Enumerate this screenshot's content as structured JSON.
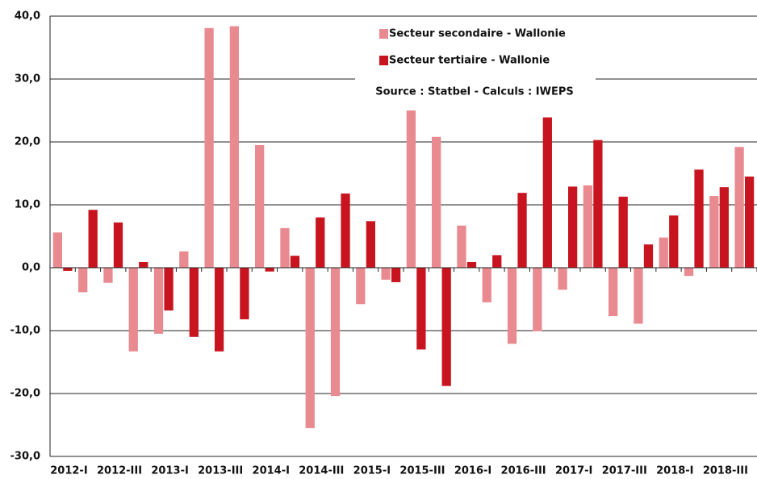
{
  "chart_data": {
    "type": "bar",
    "categories": [
      "2012-I",
      null,
      "2012-III",
      null,
      "2013-I",
      null,
      "2013-III",
      null,
      "2014-I",
      null,
      "2014-III",
      null,
      "2015-I",
      null,
      "2015-III",
      null,
      "2016-I",
      null,
      "2016-III",
      null,
      "2017-I",
      null,
      "2017-III",
      null,
      "2018-I",
      null,
      "2018-III",
      null
    ],
    "series": [
      {
        "name": "Secteur secondaire - Wallonie",
        "color": "#e88a8f",
        "values": [
          5.6,
          -3.9,
          -2.4,
          -13.3,
          -10.5,
          2.6,
          38.1,
          38.4,
          19.5,
          6.3,
          -25.5,
          -20.4,
          -5.8,
          -1.9,
          25.0,
          20.8,
          6.7,
          -5.5,
          -12.1,
          -10.1,
          -3.5,
          13.1,
          -7.7,
          -8.9,
          4.8,
          -1.3,
          11.4,
          19.2
        ]
      },
      {
        "name": "Secteur tertiaire - Wallonie",
        "color": "#c8141e",
        "values": [
          -0.5,
          9.2,
          7.2,
          0.9,
          -6.8,
          -11.0,
          -13.3,
          -8.2,
          -0.6,
          1.9,
          8.0,
          11.8,
          7.4,
          -2.3,
          -13.0,
          -18.8,
          0.9,
          2.0,
          11.9,
          23.9,
          12.9,
          20.3,
          11.3,
          3.7,
          8.3,
          15.6,
          12.8,
          14.5
        ]
      }
    ],
    "annotation": "Source : Statbel - Calculs : IWEPS",
    "ylim": [
      -30,
      40
    ],
    "yticks": [
      {
        "value": -30,
        "label": "-30,0"
      },
      {
        "value": -20,
        "label": "-20,0"
      },
      {
        "value": -10,
        "label": "-10,0"
      },
      {
        "value": 0,
        "label": "0,0"
      },
      {
        "value": 10,
        "label": "10,0"
      },
      {
        "value": 20,
        "label": "20,0"
      },
      {
        "value": 30,
        "label": "30,0"
      },
      {
        "value": 40,
        "label": "40,0"
      }
    ],
    "grid": true
  }
}
